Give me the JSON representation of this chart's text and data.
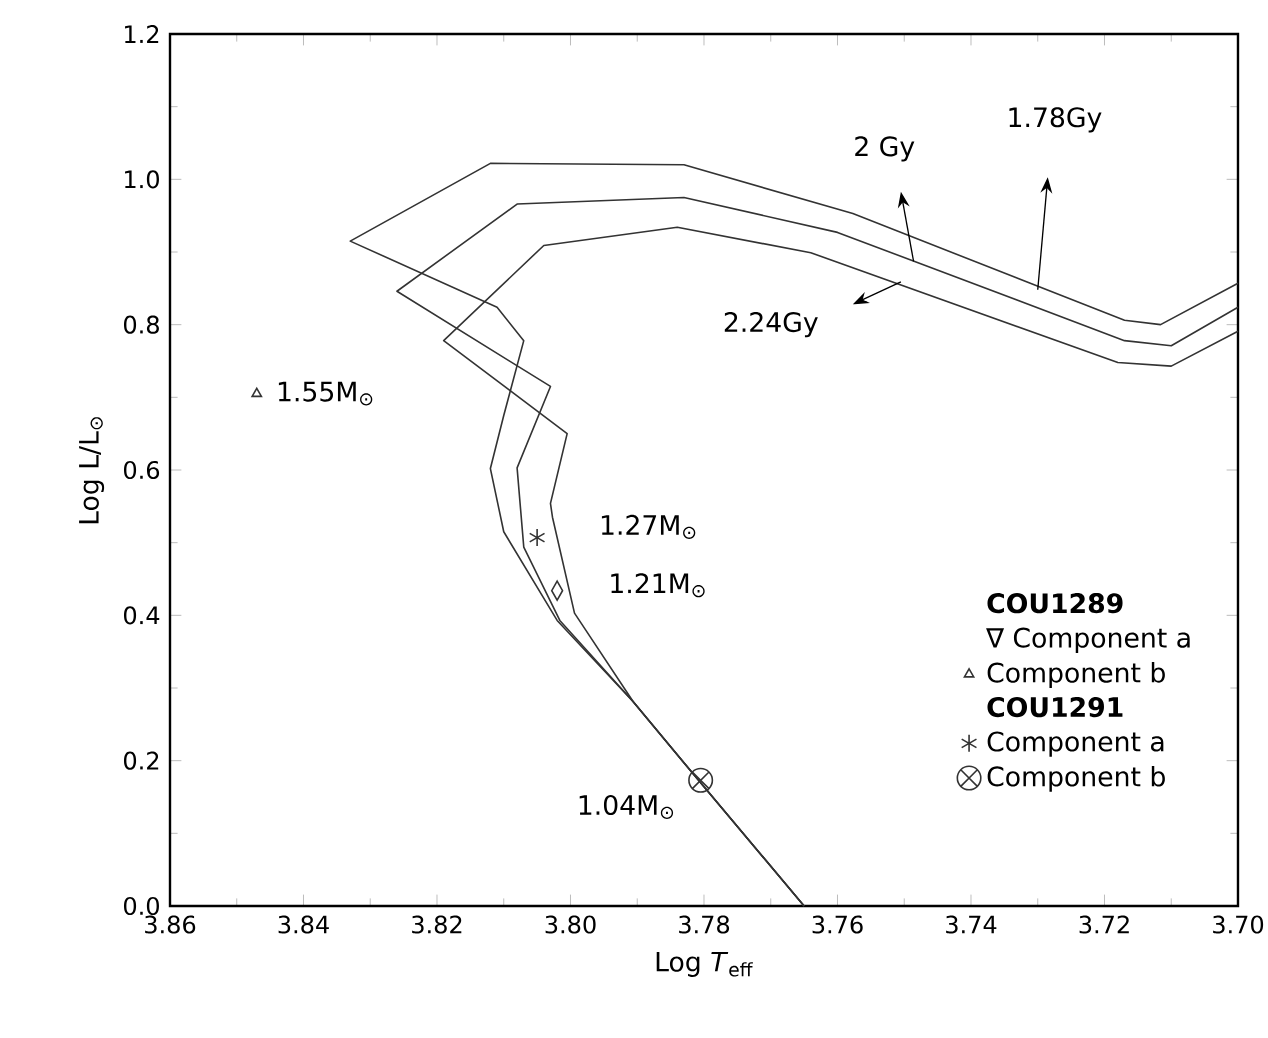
{
  "chart_data": {
    "type": "line",
    "xlabel": "Log *T*$_{eff}$",
    "ylabel": "Log L/L$_{⊙}$",
    "xlim": [
      3.86,
      3.7
    ],
    "ylim": [
      0,
      1.2
    ],
    "xticks": [
      3.86,
      3.84,
      3.82,
      {
        "value": 3.8,
        "label": "3.80"
      },
      3.78,
      3.76,
      3.74,
      3.72,
      {
        "value": 3.7,
        "label": "3.70"
      }
    ],
    "yticks": [
      {
        "value": 0,
        "label": "0.0"
      },
      0.2,
      0.4,
      0.6,
      0.8,
      {
        "value": 1,
        "label": "1.0"
      },
      1.2
    ],
    "grid": false,
    "legend": "right",
    "series": [
      {
        "color": "#333333",
        "x": [
          3.765,
          3.781,
          3.7906,
          3.802,
          3.81,
          3.812,
          3.81,
          3.807,
          3.811,
          3.833,
          3.812,
          3.783,
          3.7577,
          3.717,
          3.7116,
          3.7
        ],
        "values": [
          0.0,
          0.175,
          0.281,
          0.393,
          0.515,
          0.602,
          0.675,
          0.778,
          0.824,
          0.915,
          1.022,
          1.02,
          0.953,
          0.806,
          0.8,
          0.857
        ]
      },
      {
        "color": "#333333",
        "x": [
          3.765,
          3.781,
          3.7906,
          3.8016,
          3.807,
          3.808,
          3.803,
          3.826,
          3.808,
          3.783,
          3.76,
          3.717,
          3.71,
          3.7
        ],
        "values": [
          0.0,
          0.175,
          0.281,
          0.393,
          0.494,
          0.603,
          0.715,
          0.846,
          0.966,
          0.975,
          0.927,
          0.778,
          0.771,
          0.824
        ]
      },
      {
        "color": "#333333",
        "x": [
          3.765,
          3.781,
          3.7906,
          3.7994,
          3.8027,
          3.803,
          3.8005,
          3.819,
          3.804,
          3.784,
          3.764,
          3.718,
          3.71,
          3.7
        ],
        "values": [
          0.0,
          0.175,
          0.281,
          0.403,
          0.535,
          0.554,
          0.65,
          0.778,
          0.909,
          0.934,
          0.899,
          0.748,
          0.743,
          0.791
        ]
      },
      {
        "type": "scatter",
        "name": "Component b",
        "color": "#333333",
        "marker": "triangle",
        "x": [
          3.847
        ],
        "values": [
          0.705
        ]
      },
      {
        "type": "scatter",
        "name": "Component a",
        "color": "#333333",
        "marker": "cross",
        "x": [
          3.805
        ],
        "values": [
          0.507
        ]
      },
      {
        "type": "scatter",
        "name": "Component b",
        "color": "#333333",
        "x": [
          3.7805
        ],
        "values": [
          0.173
        ]
      },
      {
        "type": "scatter",
        "color": "#333333",
        "marker": "diamond",
        "x": [
          3.802
        ],
        "values": [
          0.434
        ]
      }
    ],
    "annotations": [
      "1.78Gy",
      "2 Gy",
      "2.24Gy",
      {
        "text": "1.55M$_{⊙}$",
        "x": 3.847,
        "y": 0.705
      },
      {
        "text": "1.27M$_{⊙}$",
        "x": 3.805,
        "y": 0.507
      },
      {
        "text": "1.21M$_{⊙}$",
        "x": 3.802,
        "y": 0.434
      },
      {
        "text": "1.04M$_{⊙}$",
        "x": 3.7805,
        "y": 0.173
      },
      "COU1289",
      "∇ Component a",
      "COU1291"
    ]
  }
}
